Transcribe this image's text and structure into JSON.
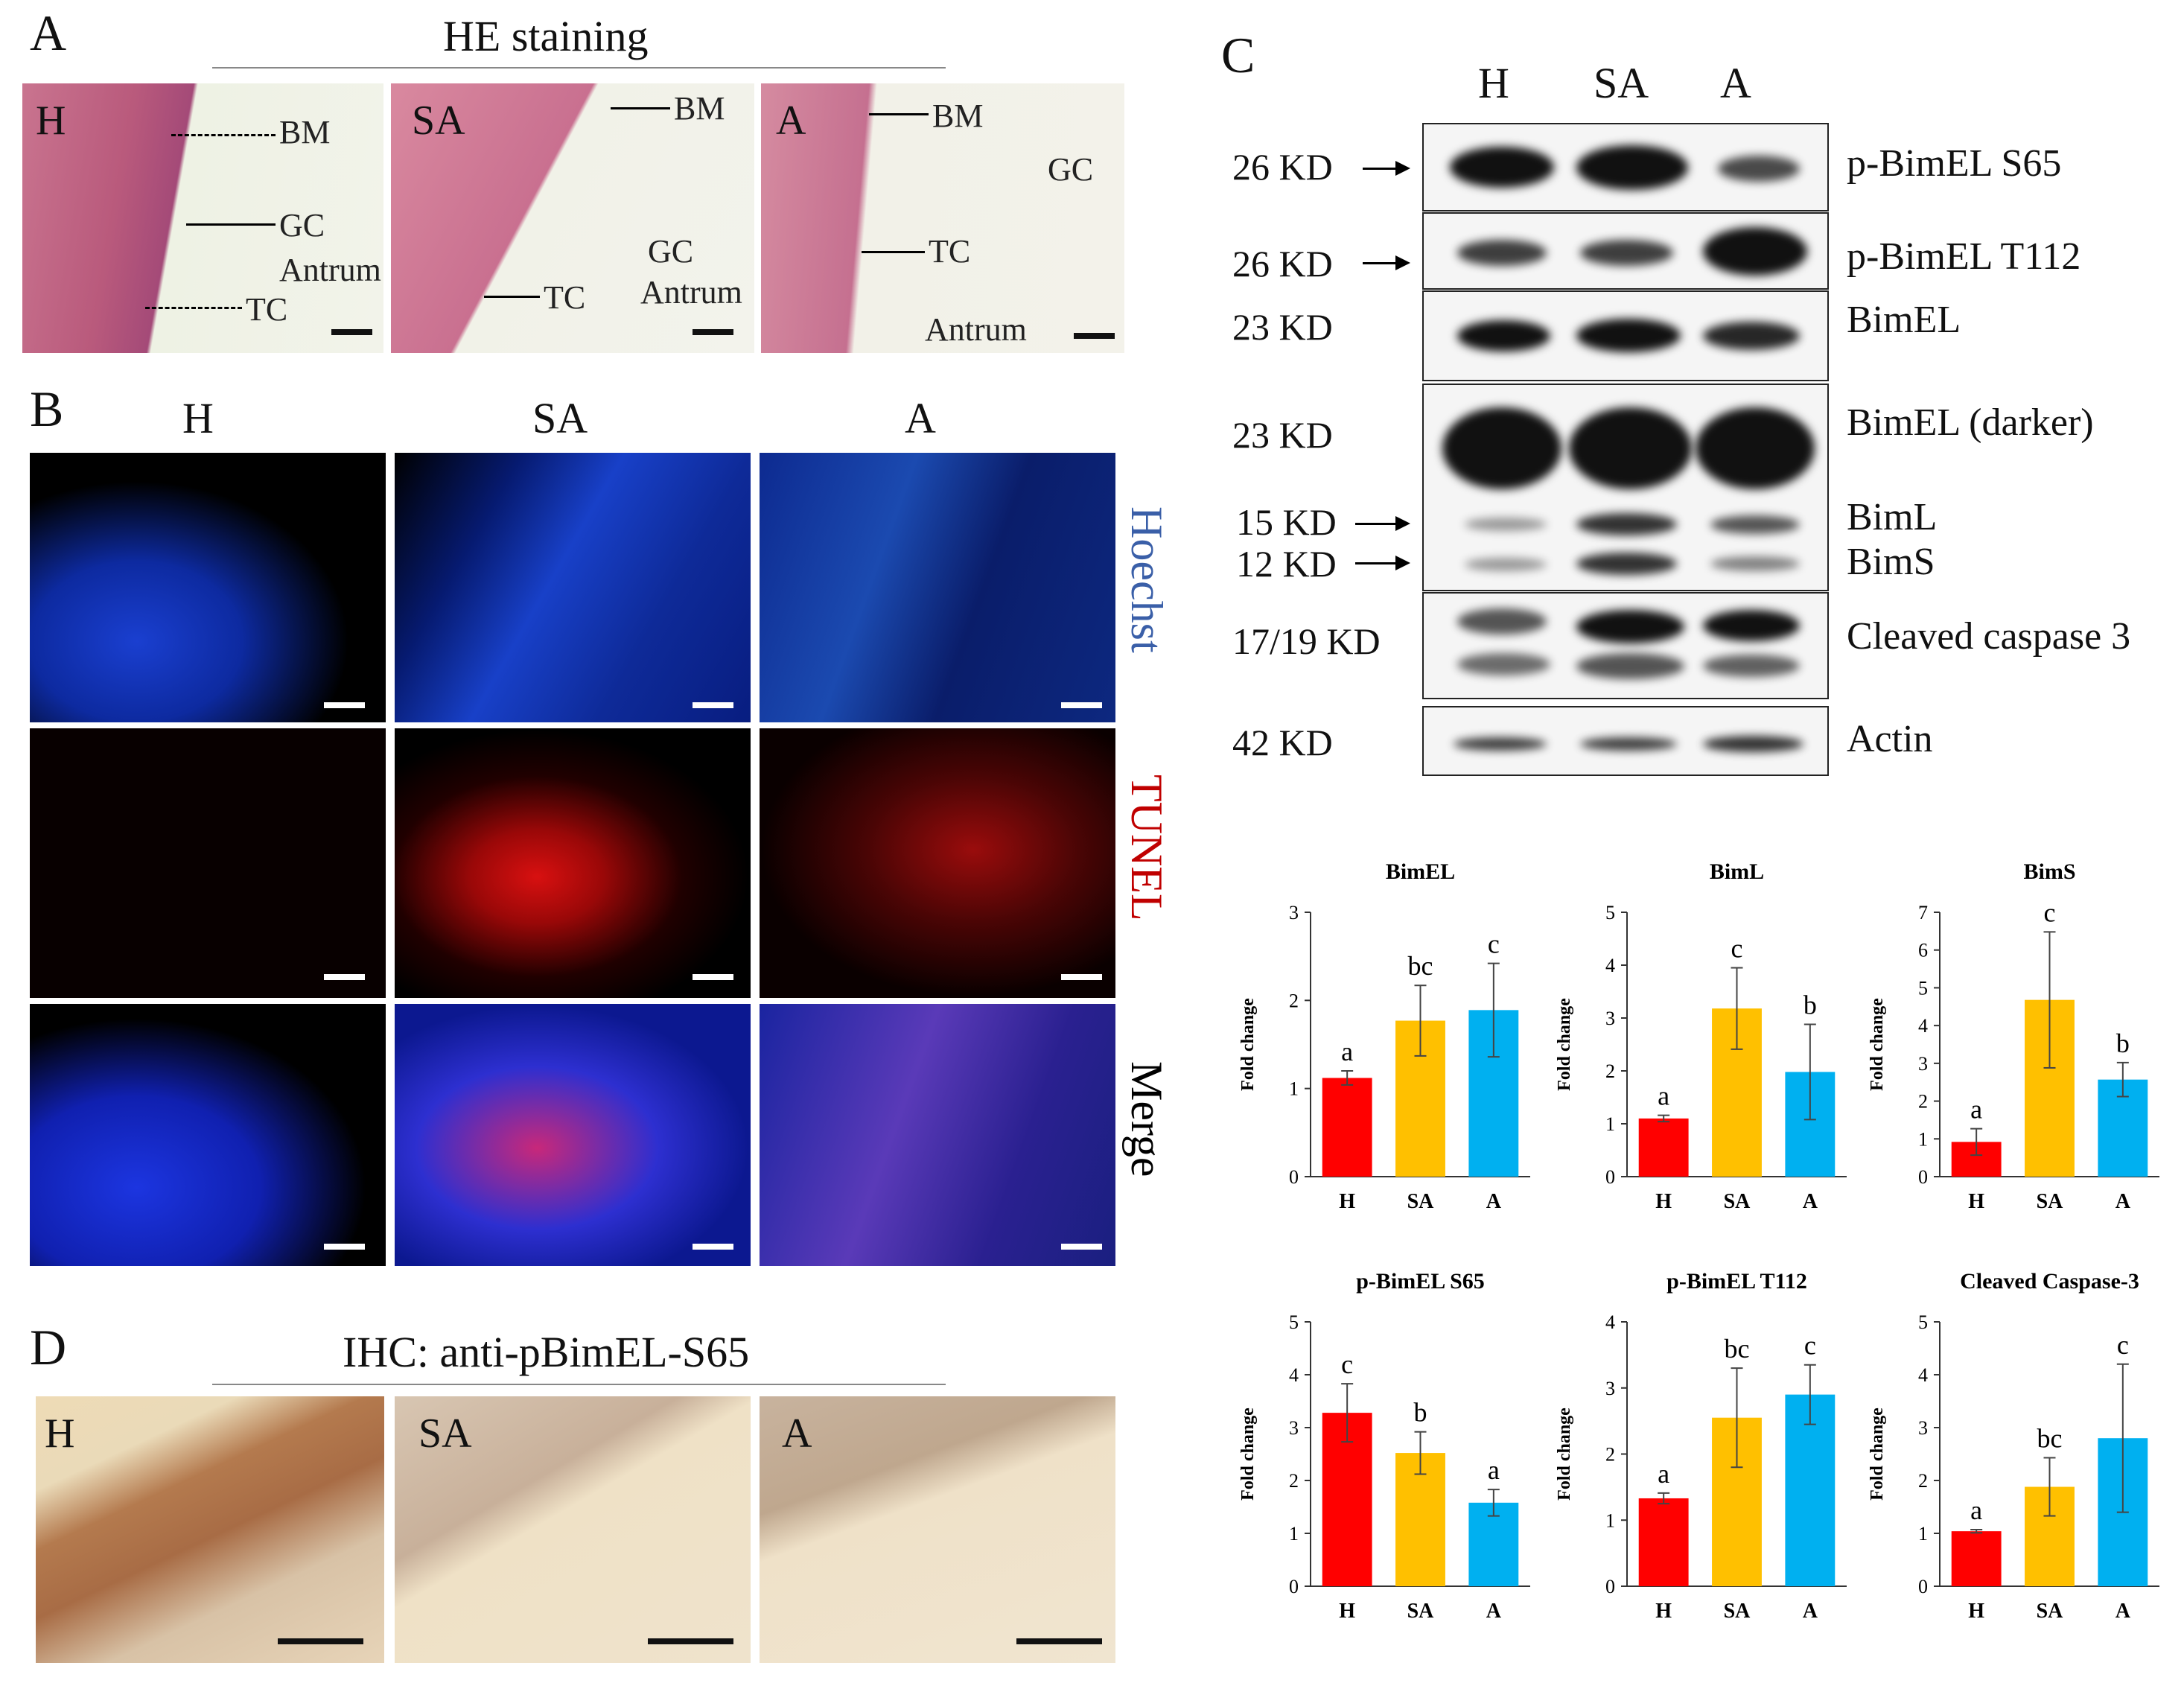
{
  "panel_A": {
    "label": "A",
    "title": "HE staining",
    "images": [
      {
        "group": "H",
        "annotations": [
          "BM",
          "GC",
          "Antrum",
          "TC"
        ]
      },
      {
        "group": "SA",
        "annotations": [
          "BM",
          "GC",
          "Antrum",
          "TC"
        ]
      },
      {
        "group": "A",
        "annotations": [
          "BM",
          "GC",
          "TC",
          "Antrum"
        ]
      }
    ]
  },
  "panel_B": {
    "label": "B",
    "columns": [
      "H",
      "SA",
      "A"
    ],
    "rows": [
      "Hoechst",
      "TUNEL",
      "Merge"
    ],
    "row_colors": {
      "Hoechst": "#3a5fa8",
      "TUNEL": "#c00000",
      "Merge": "#000000"
    }
  },
  "panel_C": {
    "label": "C",
    "lanes": [
      "H",
      "SA",
      "A"
    ],
    "blots": [
      {
        "kd": "26 KD",
        "name": "p-BimEL S65"
      },
      {
        "kd": "26 KD",
        "name": "p-BimEL T112"
      },
      {
        "kd": "23 KD",
        "name": "BimEL"
      },
      {
        "kd": "23 KD",
        "name": "BimEL (darker)"
      },
      {
        "kd": "15 KD",
        "name": "BimL"
      },
      {
        "kd": "12 KD",
        "name": "BimS"
      },
      {
        "kd": "17/19 KD",
        "name": "Cleaved caspase 3"
      },
      {
        "kd": "42 KD",
        "name": "Actin"
      }
    ]
  },
  "panel_D": {
    "label": "D",
    "title": "IHC: anti-pBimEL-S65",
    "groups": [
      "H",
      "SA",
      "A"
    ]
  },
  "chart_data": [
    {
      "type": "bar",
      "title": "BimEL",
      "ylabel": "Fold change",
      "categories": [
        "H",
        "SA",
        "A"
      ],
      "values": [
        1.12,
        1.77,
        1.89
      ],
      "errors": [
        0.08,
        0.4,
        0.53
      ],
      "letters": [
        "a",
        "bc",
        "c"
      ],
      "ylim": [
        0,
        3
      ],
      "yticks": [
        0,
        1,
        2,
        3
      ],
      "colors": [
        "#ff0000",
        "#ffc000",
        "#00b0f0"
      ]
    },
    {
      "type": "bar",
      "title": "BimL",
      "ylabel": "Fold change",
      "categories": [
        "H",
        "SA",
        "A"
      ],
      "values": [
        1.1,
        3.18,
        1.98
      ],
      "errors": [
        0.06,
        0.77,
        0.9
      ],
      "letters": [
        "a",
        "c",
        "b"
      ],
      "ylim": [
        0,
        5
      ],
      "yticks": [
        0,
        1,
        2,
        3,
        4,
        5
      ],
      "colors": [
        "#ff0000",
        "#ffc000",
        "#00b0f0"
      ]
    },
    {
      "type": "bar",
      "title": "BimS",
      "ylabel": "Fold change",
      "categories": [
        "H",
        "SA",
        "A"
      ],
      "values": [
        0.92,
        4.68,
        2.57
      ],
      "errors": [
        0.35,
        1.8,
        0.45
      ],
      "letters": [
        "a",
        "c",
        "b"
      ],
      "ylim": [
        0,
        7
      ],
      "yticks": [
        0,
        1,
        2,
        3,
        4,
        5,
        6,
        7
      ],
      "colors": [
        "#ff0000",
        "#ffc000",
        "#00b0f0"
      ]
    },
    {
      "type": "bar",
      "title": "p-BimEL S65",
      "ylabel": "Fold change",
      "categories": [
        "H",
        "SA",
        "A"
      ],
      "values": [
        3.28,
        2.52,
        1.58
      ],
      "errors": [
        0.55,
        0.4,
        0.25
      ],
      "letters": [
        "c",
        "b",
        "a"
      ],
      "ylim": [
        0,
        5
      ],
      "yticks": [
        0,
        1,
        2,
        3,
        4,
        5
      ],
      "colors": [
        "#ff0000",
        "#ffc000",
        "#00b0f0"
      ]
    },
    {
      "type": "bar",
      "title": "p-BimEL T112",
      "ylabel": "Fold change",
      "categories": [
        "H",
        "SA",
        "A"
      ],
      "values": [
        1.33,
        2.55,
        2.9
      ],
      "errors": [
        0.08,
        0.75,
        0.45
      ],
      "letters": [
        "a",
        "bc",
        "c"
      ],
      "ylim": [
        0,
        4
      ],
      "yticks": [
        0,
        1,
        2,
        3,
        4
      ],
      "colors": [
        "#ff0000",
        "#ffc000",
        "#00b0f0"
      ]
    },
    {
      "type": "bar",
      "title": "Cleaved Caspase-3",
      "ylabel": "Fold change",
      "categories": [
        "H",
        "SA",
        "A"
      ],
      "values": [
        1.04,
        1.88,
        2.8
      ],
      "errors": [
        0.03,
        0.55,
        1.4
      ],
      "letters": [
        "a",
        "bc",
        "c"
      ],
      "ylim": [
        0,
        5
      ],
      "yticks": [
        0,
        1,
        2,
        3,
        4,
        5
      ],
      "colors": [
        "#ff0000",
        "#ffc000",
        "#00b0f0"
      ]
    }
  ]
}
